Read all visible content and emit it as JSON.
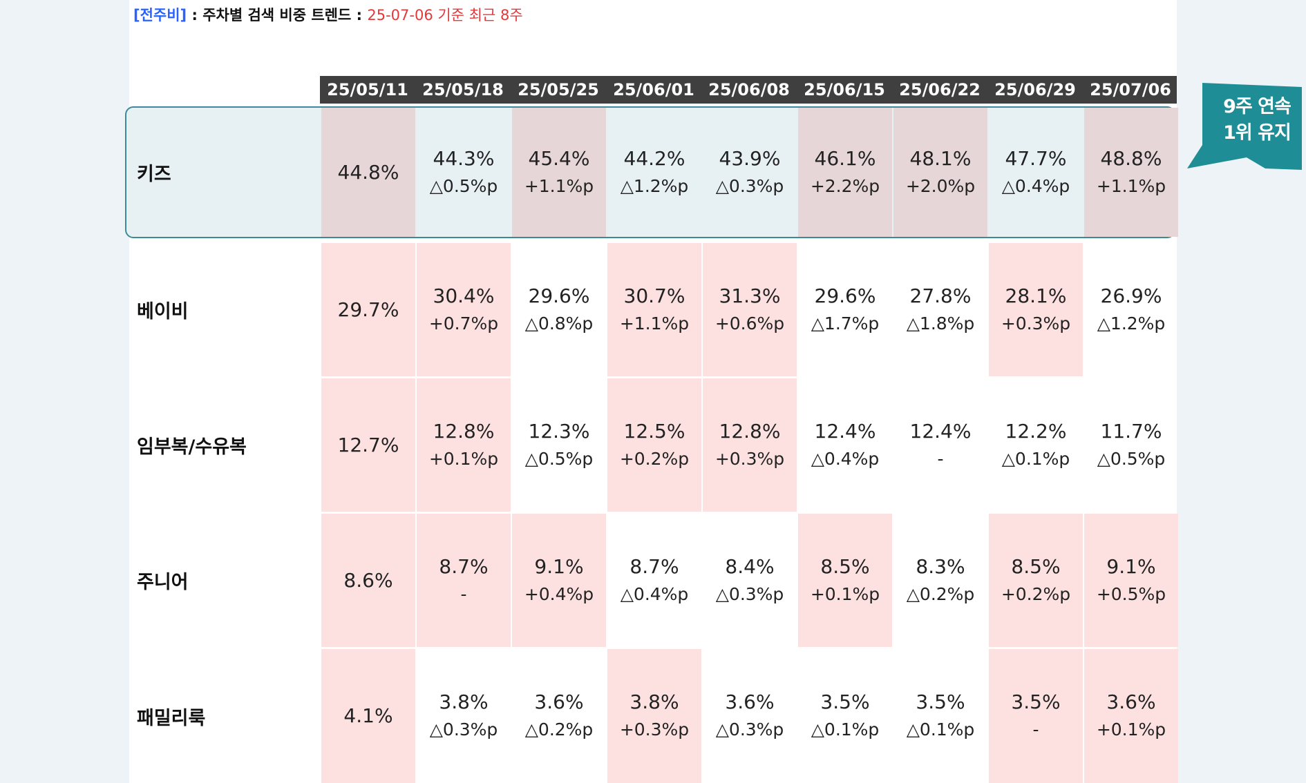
{
  "heading": {
    "tag": "[전주비]",
    "sep": " : ",
    "title": "주차별 검색 비중 트렌드",
    "sep2": " : ",
    "subtitle": "25-07-06 기준 최근 8주"
  },
  "callout": {
    "line1": "9주 연속",
    "line2": "1위 유지",
    "color": "#1f8d96"
  },
  "colors": {
    "header": "#3f3f3f",
    "highlight": "#fde1e1",
    "kids_highlight": "#e6d6d8",
    "kids_box": "#e7f1f4",
    "kids_border": "#3d8a97"
  },
  "chart_data": {
    "type": "table",
    "columns": [
      "25/05/11",
      "25/05/18",
      "25/05/25",
      "25/06/01",
      "25/06/08",
      "25/06/15",
      "25/06/22",
      "25/06/29",
      "25/07/06"
    ],
    "rows": [
      {
        "name": "키즈",
        "values": [
          "44.8%",
          "44.3%",
          "45.4%",
          "44.2%",
          "43.9%",
          "46.1%",
          "48.1%",
          "47.7%",
          "48.8%"
        ],
        "changes": [
          "",
          "△0.5%p",
          "+1.1%p",
          "△1.2%p",
          "△0.3%p",
          "+2.2%p",
          "+2.0%p",
          "△0.4%p",
          "+1.1%p"
        ],
        "highlight": [
          true,
          false,
          true,
          false,
          false,
          true,
          true,
          false,
          true
        ]
      },
      {
        "name": "베이비",
        "values": [
          "29.7%",
          "30.4%",
          "29.6%",
          "30.7%",
          "31.3%",
          "29.6%",
          "27.8%",
          "28.1%",
          "26.9%"
        ],
        "changes": [
          "",
          "+0.7%p",
          "△0.8%p",
          "+1.1%p",
          "+0.6%p",
          "△1.7%p",
          "△1.8%p",
          "+0.3%p",
          "△1.2%p"
        ],
        "highlight": [
          true,
          true,
          false,
          true,
          true,
          false,
          false,
          true,
          false
        ]
      },
      {
        "name": "임부복/수유복",
        "values": [
          "12.7%",
          "12.8%",
          "12.3%",
          "12.5%",
          "12.8%",
          "12.4%",
          "12.4%",
          "12.2%",
          "11.7%"
        ],
        "changes": [
          "",
          "+0.1%p",
          "△0.5%p",
          "+0.2%p",
          "+0.3%p",
          "△0.4%p",
          "-",
          "△0.1%p",
          "△0.5%p"
        ],
        "highlight": [
          true,
          true,
          false,
          true,
          true,
          false,
          false,
          false,
          false
        ]
      },
      {
        "name": "주니어",
        "values": [
          "8.6%",
          "8.7%",
          "9.1%",
          "8.7%",
          "8.4%",
          "8.5%",
          "8.3%",
          "8.5%",
          "9.1%"
        ],
        "changes": [
          "",
          "-",
          "+0.4%p",
          "△0.4%p",
          "△0.3%p",
          "+0.1%p",
          "△0.2%p",
          "+0.2%p",
          "+0.5%p"
        ],
        "highlight": [
          true,
          true,
          true,
          false,
          false,
          true,
          false,
          true,
          true
        ]
      },
      {
        "name": "패밀리룩",
        "values": [
          "4.1%",
          "3.8%",
          "3.6%",
          "3.8%",
          "3.6%",
          "3.5%",
          "3.5%",
          "3.5%",
          "3.6%"
        ],
        "changes": [
          "",
          "△0.3%p",
          "△0.2%p",
          "+0.3%p",
          "△0.3%p",
          "△0.1%p",
          "△0.1%p",
          "-",
          "+0.1%p"
        ],
        "highlight": [
          true,
          false,
          false,
          true,
          false,
          false,
          false,
          true,
          true
        ]
      }
    ]
  }
}
